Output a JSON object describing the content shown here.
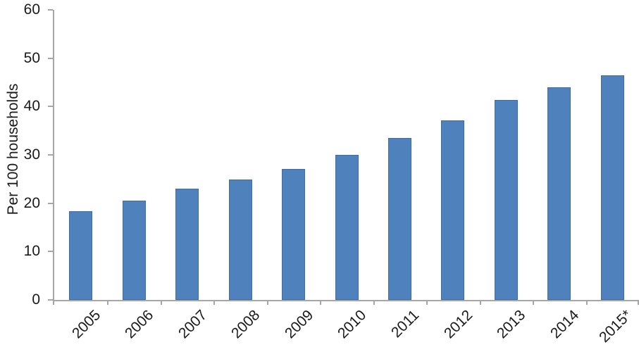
{
  "chart_data": {
    "type": "bar",
    "title": "",
    "categories": [
      "2005",
      "2006",
      "2007",
      "2008",
      "2009",
      "2010",
      "2011",
      "2012",
      "2013",
      "2014",
      "2015*"
    ],
    "values": [
      18.3,
      20.5,
      23.0,
      24.9,
      27.1,
      30.0,
      33.5,
      37.1,
      41.3,
      44.0,
      46.5
    ],
    "xlabel": "",
    "ylabel": "Per 100 households",
    "ylim": [
      0,
      60
    ],
    "ytick_step": 10,
    "ytick_labels": [
      "0",
      "10",
      "20",
      "30",
      "40",
      "50",
      "60"
    ],
    "grid": false,
    "legend": "none",
    "colors": {
      "bar_fill": "#4F81BD",
      "bar_border": "#3E6CA5",
      "axis": "#A6A6A6",
      "text": "#1A1A1A"
    }
  }
}
